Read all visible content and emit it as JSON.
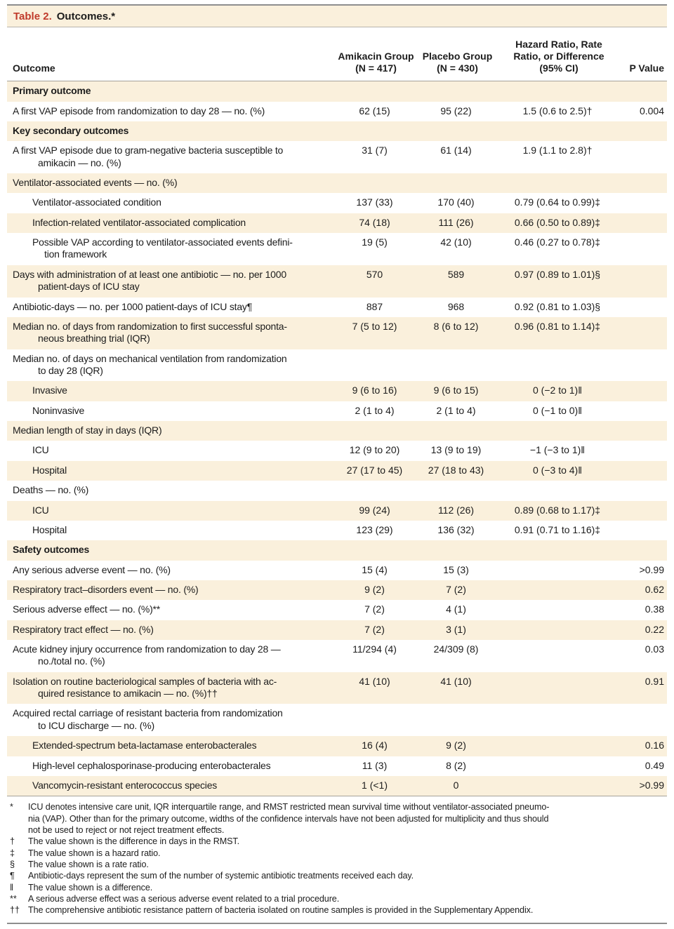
{
  "colors": {
    "accent_red": "#c03b2b",
    "row_shade": "#faf0dc"
  },
  "title": {
    "prefix": "Table 2.",
    "rest": "Outcomes.*"
  },
  "header": {
    "outcome": "Outcome",
    "amikacin": "Amikacin Group\n(N = 417)",
    "placebo": "Placebo Group\n(N = 430)",
    "ratio": "Hazard Ratio, Rate\nRatio, or Difference\n(95% CI)",
    "p_value": "P Value"
  },
  "rows": [
    {
      "type": "section",
      "level": 0,
      "shaded": true,
      "label": "Primary outcome",
      "amikacin": "",
      "placebo": "",
      "ratio": "",
      "p": ""
    },
    {
      "type": "data",
      "level": 0,
      "shaded": false,
      "label": "A first VAP episode from randomization to day 28 — no. (%)",
      "amikacin": "62 (15)",
      "placebo": "95 (22)",
      "ratio": "1.5 (0.6 to 2.5)†",
      "p": "0.004"
    },
    {
      "type": "section",
      "level": 0,
      "shaded": true,
      "label": "Key secondary outcomes",
      "amikacin": "",
      "placebo": "",
      "ratio": "",
      "p": ""
    },
    {
      "type": "data",
      "level": 0,
      "shaded": false,
      "label": "A first VAP episode due to gram-negative bacteria susceptible to\namikacin — no. (%)",
      "amikacin": "31 (7)",
      "placebo": "61 (14)",
      "ratio": "1.9 (1.1 to 2.8)†",
      "p": ""
    },
    {
      "type": "data",
      "level": 0,
      "shaded": true,
      "label": "Ventilator-associated events — no. (%)",
      "amikacin": "",
      "placebo": "",
      "ratio": "",
      "p": ""
    },
    {
      "type": "data",
      "level": 1,
      "shaded": false,
      "label": "Ventilator-associated condition",
      "amikacin": "137 (33)",
      "placebo": "170 (40)",
      "ratio": "0.79 (0.64 to 0.99)‡",
      "p": ""
    },
    {
      "type": "data",
      "level": 1,
      "shaded": true,
      "label": "Infection-related ventilator-associated complication",
      "amikacin": "74 (18)",
      "placebo": "111 (26)",
      "ratio": "0.66 (0.50 to 0.89)‡",
      "p": ""
    },
    {
      "type": "data",
      "level": 1,
      "shaded": false,
      "label": "Possible VAP according to ventilator-associated events defini-\ntion framework",
      "amikacin": "19 (5)",
      "placebo": "42 (10)",
      "ratio": "0.46 (0.27 to 0.78)‡",
      "p": ""
    },
    {
      "type": "data",
      "level": 0,
      "shaded": true,
      "label": "Days with administration of at least one antibiotic — no. per 1000\npatient-days of ICU stay",
      "amikacin": "570",
      "placebo": "589",
      "ratio": "0.97 (0.89 to 1.01)§",
      "p": ""
    },
    {
      "type": "data",
      "level": 0,
      "shaded": false,
      "label": "Antibiotic-days — no. per 1000 patient-days of ICU stay¶",
      "amikacin": "887",
      "placebo": "968",
      "ratio": "0.92 (0.81 to 1.03)§",
      "p": ""
    },
    {
      "type": "data",
      "level": 0,
      "shaded": true,
      "label": "Median no. of days from randomization to first successful sponta-\nneous breathing trial (IQR)",
      "amikacin": "7 (5 to 12)",
      "placebo": "8 (6 to 12)",
      "ratio": "0.96 (0.81 to 1.14)‡",
      "p": ""
    },
    {
      "type": "data",
      "level": 0,
      "shaded": false,
      "label": "Median no. of days on mechanical ventilation from randomization\nto day 28 (IQR)",
      "amikacin": "",
      "placebo": "",
      "ratio": "",
      "p": ""
    },
    {
      "type": "data",
      "level": 1,
      "shaded": true,
      "label": "Invasive",
      "amikacin": "9 (6 to 16)",
      "placebo": "9 (6 to 15)",
      "ratio": "0 (−2 to 1)‖",
      "p": ""
    },
    {
      "type": "data",
      "level": 1,
      "shaded": false,
      "label": "Noninvasive",
      "amikacin": "2 (1 to 4)",
      "placebo": "2 (1 to 4)",
      "ratio": "0 (−1 to 0)‖",
      "p": ""
    },
    {
      "type": "data",
      "level": 0,
      "shaded": true,
      "label": "Median length of stay in days (IQR)",
      "amikacin": "",
      "placebo": "",
      "ratio": "",
      "p": ""
    },
    {
      "type": "data",
      "level": 1,
      "shaded": false,
      "label": "ICU",
      "amikacin": "12 (9 to 20)",
      "placebo": "13 (9 to 19)",
      "ratio": "−1 (−3 to 1)‖",
      "p": ""
    },
    {
      "type": "data",
      "level": 1,
      "shaded": true,
      "label": "Hospital",
      "amikacin": "27 (17 to 45)",
      "placebo": "27 (18 to 43)",
      "ratio": "0 (−3 to 4)‖",
      "p": ""
    },
    {
      "type": "data",
      "level": 0,
      "shaded": false,
      "label": "Deaths — no. (%)",
      "amikacin": "",
      "placebo": "",
      "ratio": "",
      "p": ""
    },
    {
      "type": "data",
      "level": 1,
      "shaded": true,
      "label": "ICU",
      "amikacin": "99 (24)",
      "placebo": "112 (26)",
      "ratio": "0.89 (0.68 to 1.17)‡",
      "p": ""
    },
    {
      "type": "data",
      "level": 1,
      "shaded": false,
      "label": "Hospital",
      "amikacin": "123 (29)",
      "placebo": "136 (32)",
      "ratio": "0.91 (0.71 to 1.16)‡",
      "p": ""
    },
    {
      "type": "section",
      "level": 0,
      "shaded": true,
      "label": "Safety outcomes",
      "amikacin": "",
      "placebo": "",
      "ratio": "",
      "p": ""
    },
    {
      "type": "data",
      "level": 0,
      "shaded": false,
      "label": "Any serious adverse event — no. (%)",
      "amikacin": "15 (4)",
      "placebo": "15 (3)",
      "ratio": "",
      "p": ">0.99"
    },
    {
      "type": "data",
      "level": 0,
      "shaded": true,
      "label": "Respiratory tract–disorders event — no. (%)",
      "amikacin": "9 (2)",
      "placebo": "7 (2)",
      "ratio": "",
      "p": "0.62"
    },
    {
      "type": "data",
      "level": 0,
      "shaded": false,
      "label": "Serious adverse effect — no. (%)**",
      "amikacin": "7 (2)",
      "placebo": "4 (1)",
      "ratio": "",
      "p": "0.38"
    },
    {
      "type": "data",
      "level": 0,
      "shaded": true,
      "label": "Respiratory tract effect — no. (%)",
      "amikacin": "7 (2)",
      "placebo": "3 (1)",
      "ratio": "",
      "p": "0.22"
    },
    {
      "type": "data",
      "level": 0,
      "shaded": false,
      "label": "Acute kidney injury occurrence from randomization to day 28 —\nno./total no. (%)",
      "amikacin": "11/294 (4)",
      "placebo": "24/309 (8)",
      "ratio": "",
      "p": "0.03"
    },
    {
      "type": "data",
      "level": 0,
      "shaded": true,
      "label": "Isolation on routine bacteriological samples of bacteria with ac-\nquired resistance to amikacin — no. (%)††",
      "amikacin": "41 (10)",
      "placebo": "41 (10)",
      "ratio": "",
      "p": "0.91"
    },
    {
      "type": "data",
      "level": 0,
      "shaded": false,
      "label": "Acquired rectal carriage of resistant bacteria from randomization\nto ICU discharge — no. (%)",
      "amikacin": "",
      "placebo": "",
      "ratio": "",
      "p": ""
    },
    {
      "type": "data",
      "level": 1,
      "shaded": true,
      "label": "Extended-spectrum beta-lactamase enterobacterales",
      "amikacin": "16 (4)",
      "placebo": "9 (2)",
      "ratio": "",
      "p": "0.16"
    },
    {
      "type": "data",
      "level": 1,
      "shaded": false,
      "label": "High-level cephalosporinase-producing enterobacterales",
      "amikacin": "11 (3)",
      "placebo": "8 (2)",
      "ratio": "",
      "p": "0.49"
    },
    {
      "type": "data",
      "level": 1,
      "shaded": true,
      "label": "Vancomycin-resistant enterococcus species",
      "amikacin": "1 (<1)",
      "placebo": "0",
      "ratio": "",
      "p": ">0.99"
    }
  ],
  "footnotes": [
    {
      "sym": "*",
      "text": "ICU denotes intensive care unit, IQR interquartile range, and RMST restricted mean survival time without ventilator-associated pneumo-\nnia (VAP). Other than for the primary outcome, widths of the confidence intervals have not been adjusted for multiplicity and thus should\nnot be used to reject or not reject treatment effects."
    },
    {
      "sym": "†",
      "text": "The value shown is the difference in days in the RMST."
    },
    {
      "sym": "‡",
      "text": "The value shown is a hazard ratio."
    },
    {
      "sym": "§",
      "text": "The value shown is a rate ratio."
    },
    {
      "sym": "¶",
      "text": "Antibiotic-days represent the sum of the number of systemic antibiotic treatments received each day."
    },
    {
      "sym": "‖",
      "text": "The value shown is a difference."
    },
    {
      "sym": "**",
      "text": "A serious adverse effect was a serious adverse event related to a trial procedure."
    },
    {
      "sym": "††",
      "text": "The comprehensive antibiotic resistance pattern of bacteria isolated on routine samples is provided in the Supplementary Appendix."
    }
  ]
}
